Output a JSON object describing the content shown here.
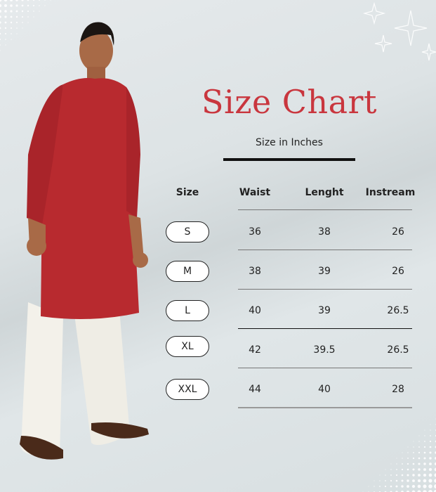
{
  "title": "Size Chart",
  "subtitle": "Size in Inches",
  "colors": {
    "title": "#c9363e",
    "kurta": "#b82a2f",
    "background": "#dde3e5"
  },
  "table": {
    "headers": [
      "Size",
      "Waist",
      "Lenght",
      "Instream"
    ],
    "rows": [
      {
        "size": "S",
        "waist": "36",
        "length": "38",
        "inseam": "26"
      },
      {
        "size": "M",
        "waist": "38",
        "length": "39",
        "inseam": "26"
      },
      {
        "size": "L",
        "waist": "40",
        "length": "39",
        "inseam": "26.5"
      },
      {
        "size": "XL",
        "waist": "42",
        "length": "39.5",
        "inseam": "26.5"
      },
      {
        "size": "XXL",
        "waist": "44",
        "length": "40",
        "inseam": "28"
      }
    ]
  }
}
